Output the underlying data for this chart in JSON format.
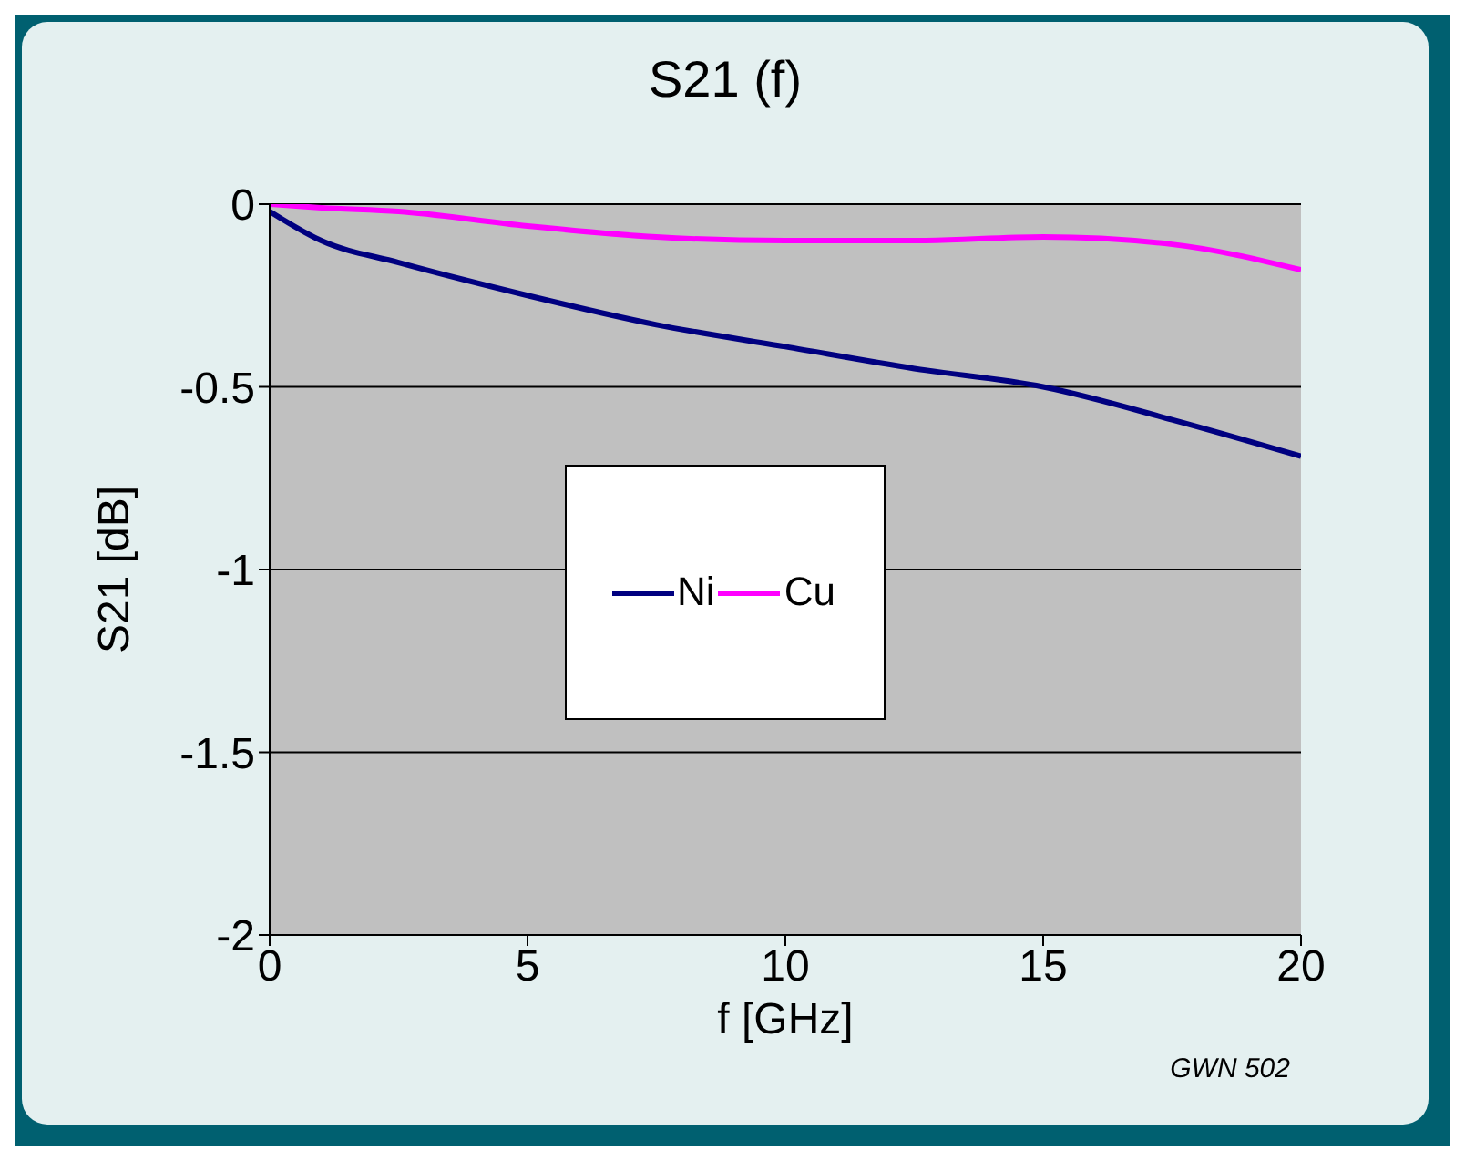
{
  "chart_data": {
    "type": "line",
    "title": "S21 (f)",
    "xlabel": "f [GHz]",
    "ylabel": "S21 [dB]",
    "x": [
      0,
      1,
      2.5,
      5,
      7.5,
      10,
      12.5,
      15,
      17.5,
      20
    ],
    "series": [
      {
        "name": "Ni",
        "color": "#000080",
        "values": [
          -0.02,
          -0.1,
          -0.16,
          -0.25,
          -0.33,
          -0.39,
          -0.45,
          -0.5,
          -0.59,
          -0.69
        ]
      },
      {
        "name": "Cu",
        "color": "#ff00ff",
        "values": [
          0,
          -0.01,
          -0.02,
          -0.06,
          -0.09,
          -0.1,
          -0.1,
          -0.09,
          -0.11,
          -0.18
        ]
      }
    ],
    "xlim": [
      0,
      20
    ],
    "xticks": [
      0,
      5,
      10,
      15,
      20
    ],
    "ylim": [
      -2,
      0
    ],
    "yticks": [
      0,
      -0.5,
      -1,
      -1.5,
      -2
    ],
    "grid": "y",
    "legend": "center",
    "marker": "none",
    "line_style": "solid",
    "annotations": [
      "GWN 502"
    ]
  }
}
